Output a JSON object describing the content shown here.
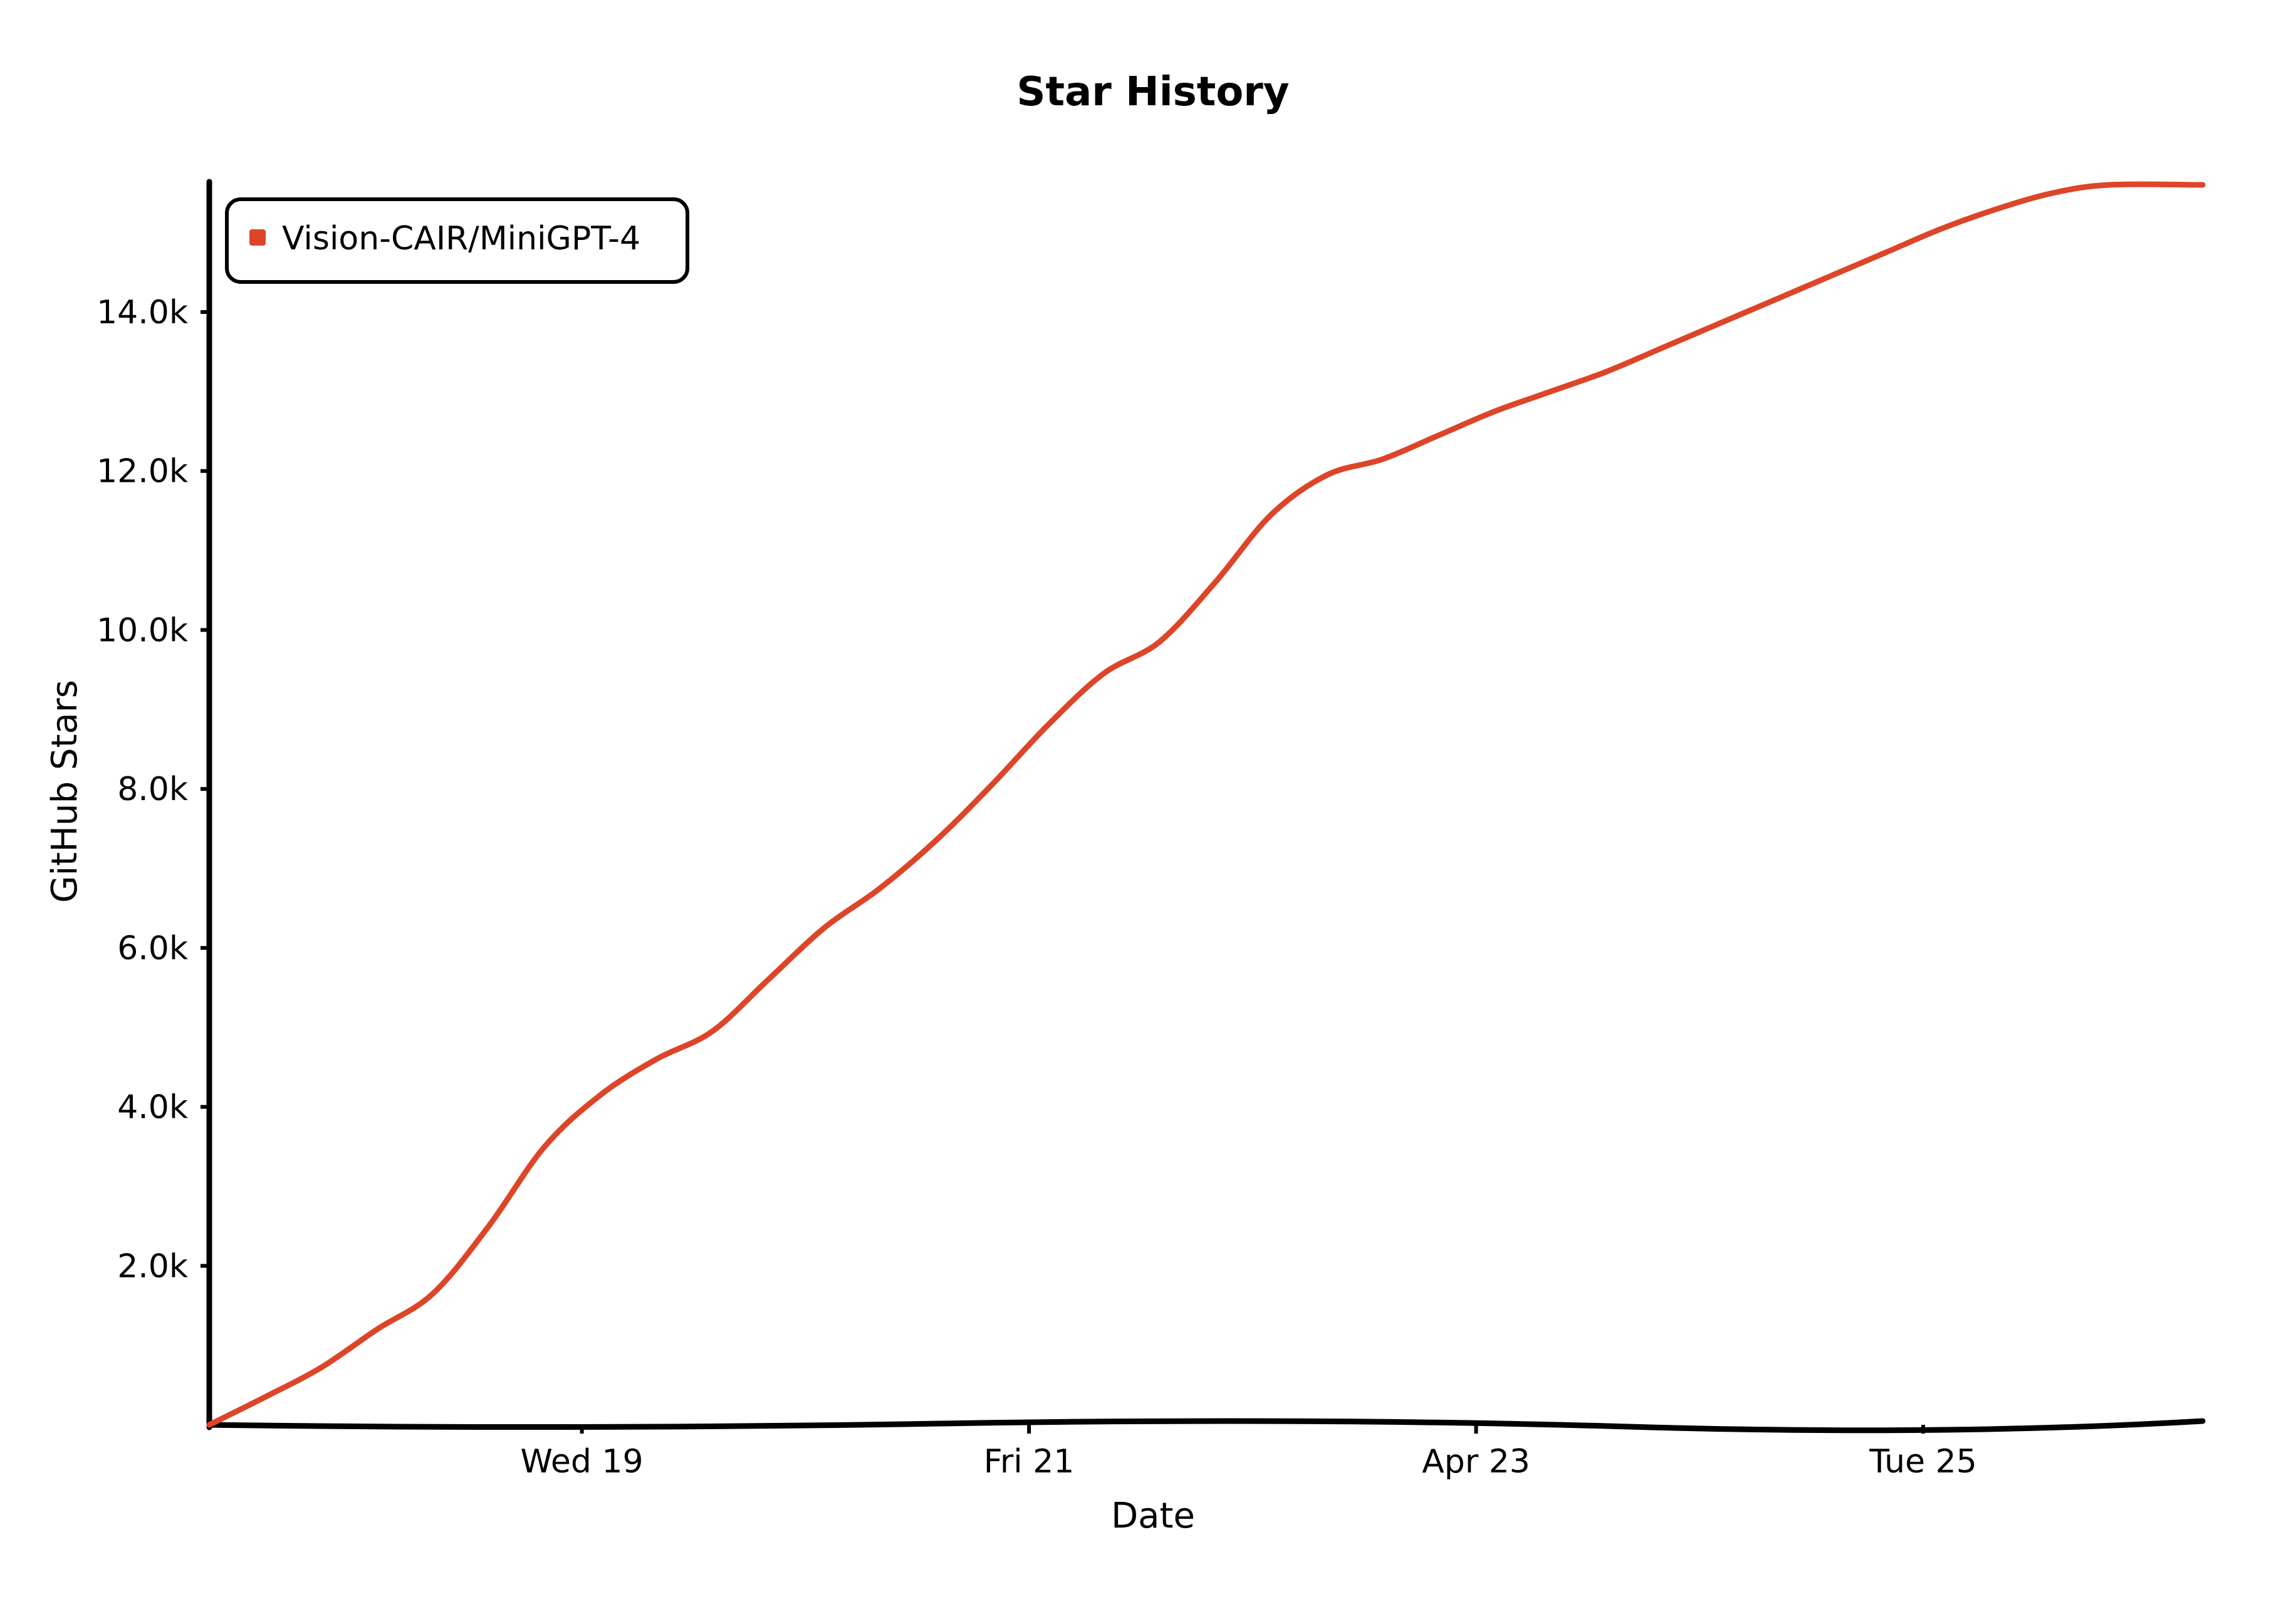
{
  "chart_data": {
    "type": "line",
    "title": "Star History",
    "xlabel": "Date",
    "ylabel": "GitHub Stars",
    "x_ticks": [
      "Wed 19",
      "Fri 21",
      "Apr 23",
      "Tue 25"
    ],
    "x_tick_dates": [
      "2023-04-19",
      "2023-04-21",
      "2023-04-23",
      "2023-04-25"
    ],
    "xlim": [
      "2023-04-17T08:00",
      "2023-04-26T06:00"
    ],
    "y_ticks": [
      "2.0k",
      "4.0k",
      "6.0k",
      "8.0k",
      "10.0k",
      "12.0k",
      "14.0k"
    ],
    "y_tick_values": [
      2000,
      4000,
      6000,
      8000,
      10000,
      12000,
      14000
    ],
    "ylim": [
      0,
      15600
    ],
    "legend_position": "top-left",
    "series": [
      {
        "name": "Vision-CAIR/MiniGPT-4",
        "color": "#dd4528",
        "points": [
          [
            "2023-04-17T08:00",
            0
          ],
          [
            "2023-04-17T14:00",
            350
          ],
          [
            "2023-04-17T20:00",
            720
          ],
          [
            "2023-04-18T02:00",
            1200
          ],
          [
            "2023-04-18T08:00",
            1650
          ],
          [
            "2023-04-18T14:00",
            2500
          ],
          [
            "2023-04-18T20:00",
            3500
          ],
          [
            "2023-04-19T02:00",
            4150
          ],
          [
            "2023-04-19T08:00",
            4600
          ],
          [
            "2023-04-19T14:00",
            4950
          ],
          [
            "2023-04-19T20:00",
            5600
          ],
          [
            "2023-04-20T02:00",
            6250
          ],
          [
            "2023-04-20T08:00",
            6750
          ],
          [
            "2023-04-20T14:00",
            7350
          ],
          [
            "2023-04-20T20:00",
            8050
          ],
          [
            "2023-04-21T02:00",
            8800
          ],
          [
            "2023-04-21T08:00",
            9450
          ],
          [
            "2023-04-21T14:00",
            9850
          ],
          [
            "2023-04-21T20:00",
            10600
          ],
          [
            "2023-04-22T02:00",
            11450
          ],
          [
            "2023-04-22T08:00",
            11950
          ],
          [
            "2023-04-22T14:00",
            12150
          ],
          [
            "2023-04-22T20:00",
            12450
          ],
          [
            "2023-04-23T02:00",
            12750
          ],
          [
            "2023-04-23T08:00",
            13000
          ],
          [
            "2023-04-23T14:00",
            13250
          ],
          [
            "2023-04-23T20:00",
            13550
          ],
          [
            "2023-04-24T02:00",
            13850
          ],
          [
            "2023-04-24T08:00",
            14150
          ],
          [
            "2023-04-24T14:00",
            14450
          ],
          [
            "2023-04-24T20:00",
            14750
          ],
          [
            "2023-04-25T02:00",
            15050
          ],
          [
            "2023-04-25T08:00",
            15300
          ],
          [
            "2023-04-25T14:00",
            15500
          ],
          [
            "2023-04-25T20:00",
            15600
          ],
          [
            "2023-04-26T06:00",
            15600
          ]
        ]
      }
    ]
  }
}
